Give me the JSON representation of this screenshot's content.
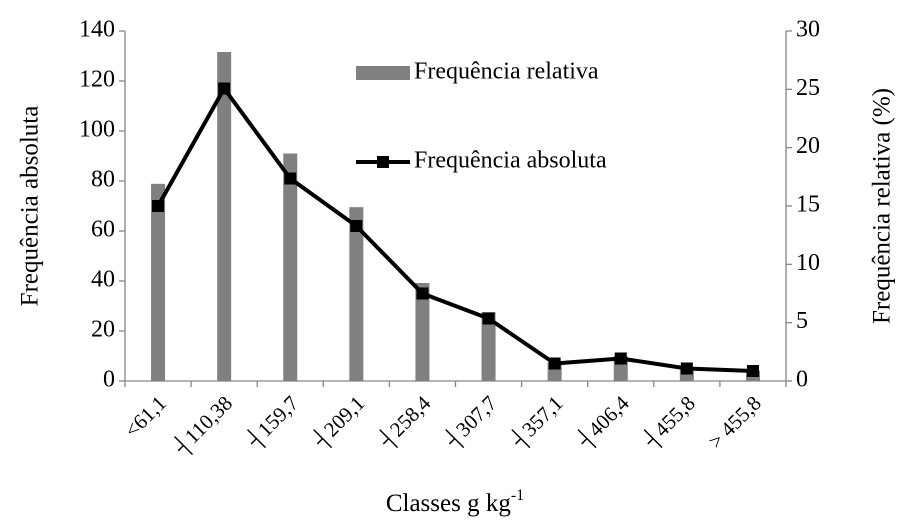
{
  "chart_data": {
    "type": "bar_line",
    "categories": [
      "<61,1",
      "┤110,38",
      "┤159,7",
      "┤209,1",
      "┤258,4",
      "┤307,7",
      "┤357,1",
      "┤406,4",
      "┤455,8",
      "> 455,8"
    ],
    "series": [
      {
        "name": "Frequência relativa",
        "type": "bar",
        "axis": "y2",
        "color": "#808080",
        "values": [
          16.9,
          28.2,
          19.5,
          14.9,
          8.4,
          5.9,
          1.6,
          2.1,
          1.2,
          0.9
        ]
      },
      {
        "name": "Frequência absoluta",
        "type": "line",
        "axis": "y",
        "color": "#000000",
        "values": [
          70,
          117,
          81,
          62,
          35,
          25,
          7,
          9,
          5,
          4
        ]
      }
    ],
    "ylabel": "Frequência absoluta",
    "y2label": "Frequência relativa (%)",
    "xlabel": "Classes g kg",
    "xlabel_sup": "-1",
    "ylim": [
      0,
      140
    ],
    "yticks": [
      0,
      20,
      40,
      60,
      80,
      100,
      120,
      140
    ],
    "y2lim": [
      0,
      30
    ],
    "y2ticks": [
      0,
      5,
      10,
      15,
      20,
      25,
      30
    ],
    "grid": false
  }
}
